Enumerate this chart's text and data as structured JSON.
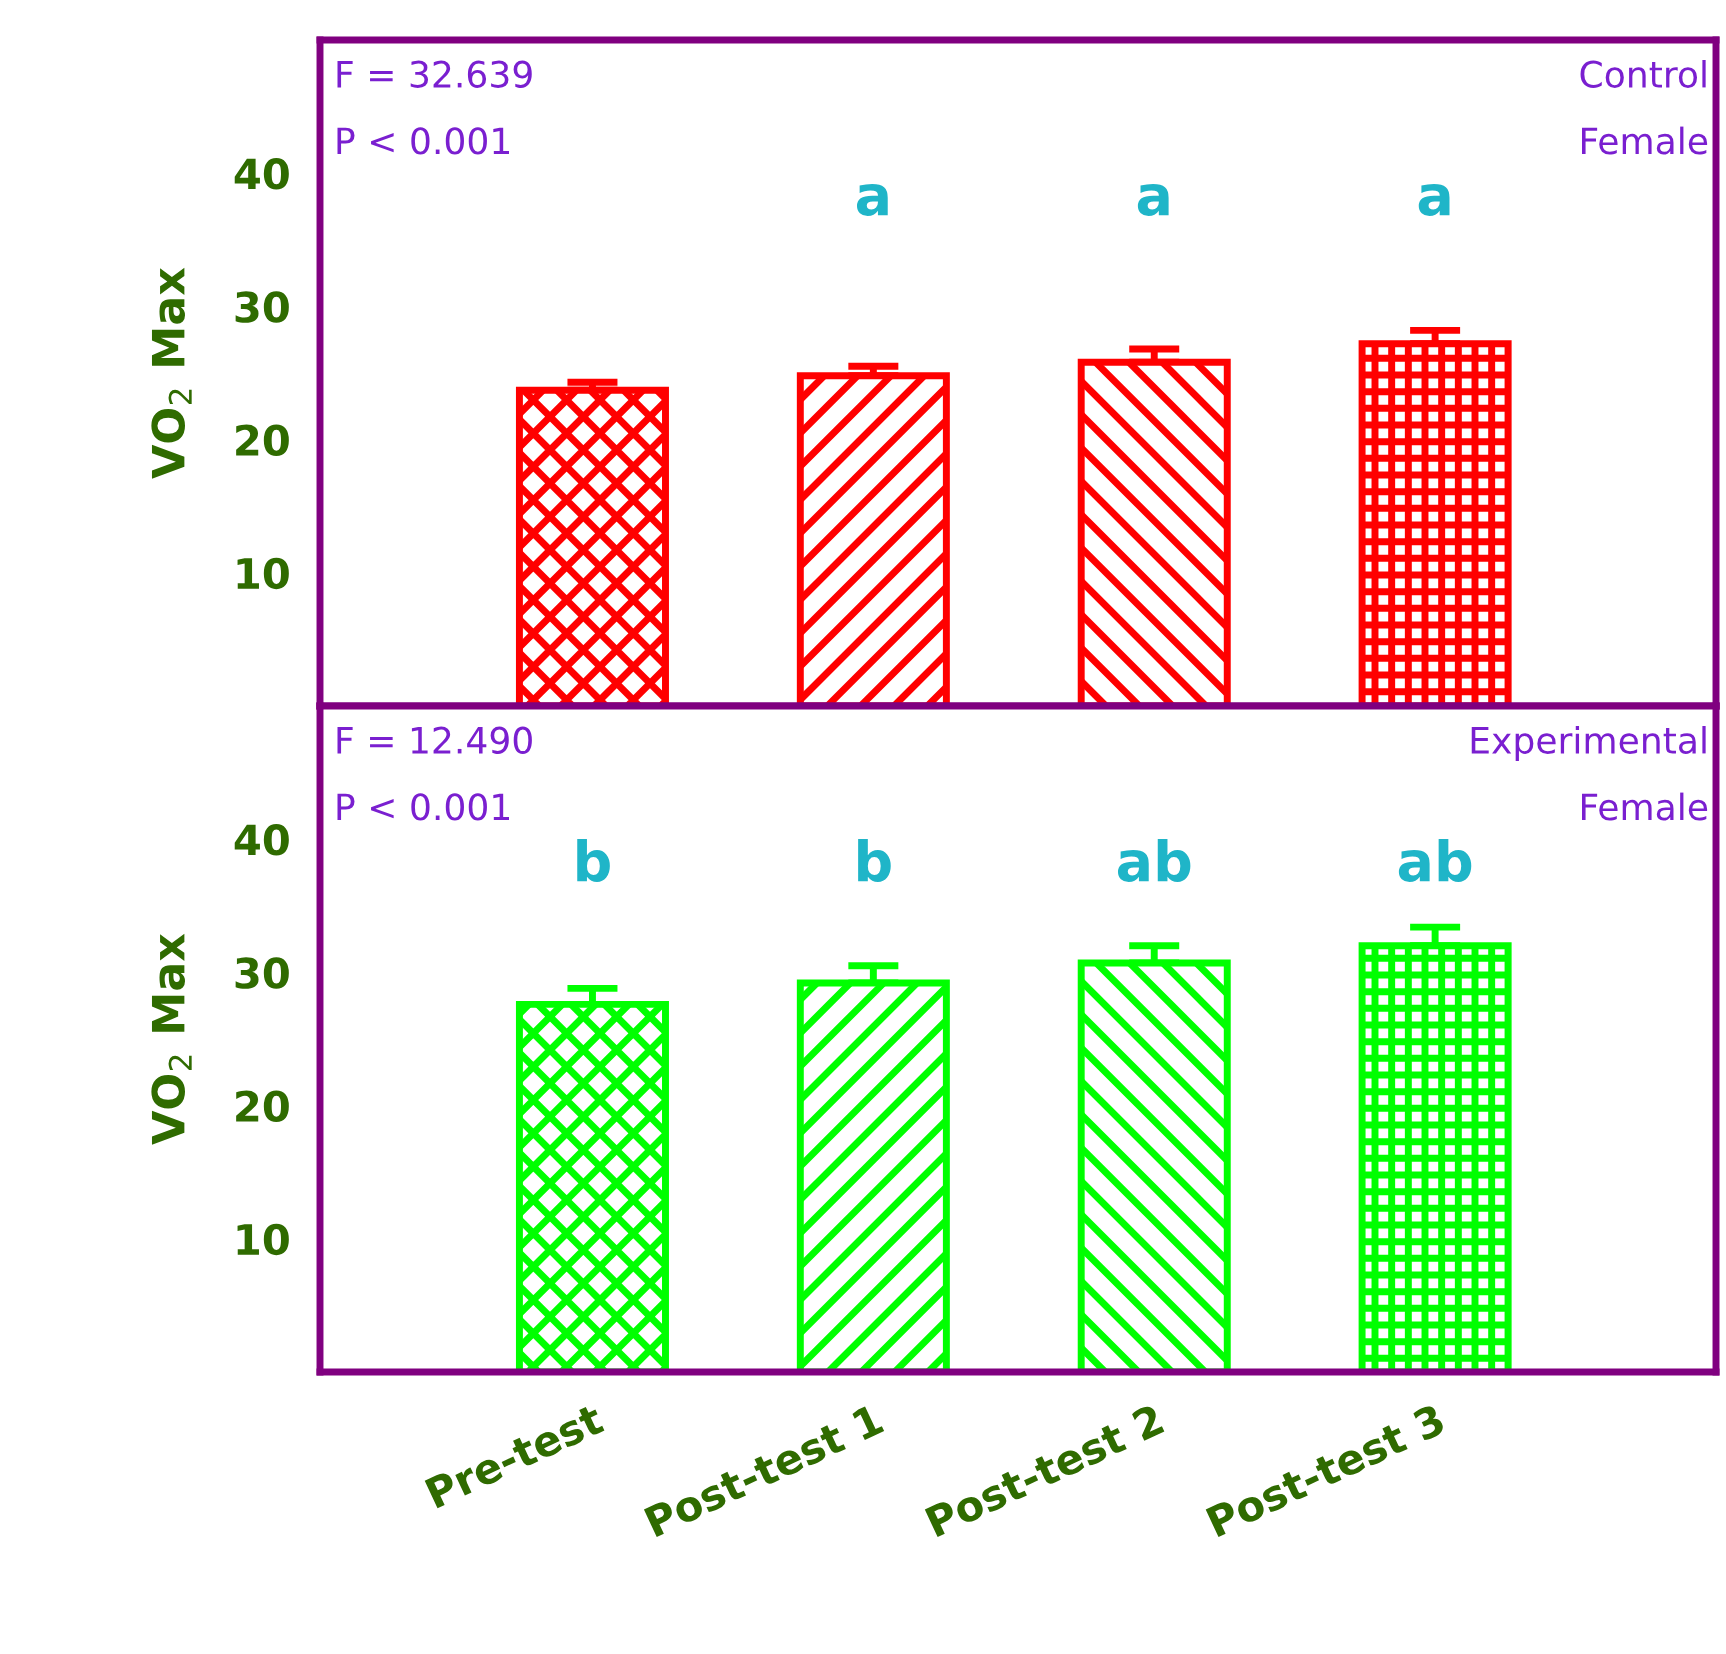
{
  "chart_data": [
    {
      "type": "bar",
      "categories": [
        null,
        null,
        null,
        null
      ],
      "ylabel": "VO$_{2}$ Max",
      "ylim": [
        0,
        50
      ],
      "yticks": [
        10,
        20,
        30,
        40
      ],
      "tick_labels": "y",
      "grid": false,
      "series": [
        {
          "color": "#ff0000",
          "values": [
            23.7,
            24.8,
            25.8,
            27.2
          ],
          "errors": [
            [
              23.7,
              24.3
            ],
            [
              24.8,
              25.5
            ],
            [
              25.8,
              26.8
            ],
            [
              27.2,
              28.2
            ]
          ]
        }
      ],
      "annotations": [
        "F = 32.639",
        "P < 0.001",
        "Control",
        "Female",
        "a",
        "a",
        "a"
      ]
    },
    {
      "type": "bar",
      "categories": [
        "Pre-test",
        "Post-test 1",
        "Post-test 2",
        "Post-test 3"
      ],
      "ylabel": "VO$_{2}$ Max",
      "ylim": [
        0,
        50
      ],
      "yticks": [
        10,
        20,
        30,
        40
      ],
      "grid": false,
      "series": [
        {
          "color": "#00ff00",
          "values": [
            27.6,
            29.2,
            30.7,
            32.0
          ],
          "errors": [
            [
              27.6,
              28.8
            ],
            [
              29.2,
              30.5
            ],
            [
              30.7,
              32.0
            ],
            [
              32.0,
              33.4
            ]
          ]
        }
      ],
      "annotations": [
        "F = 12.490",
        "P < 0.001",
        "Experimental",
        "Female",
        "b",
        "b",
        "ab",
        "ab"
      ]
    }
  ]
}
